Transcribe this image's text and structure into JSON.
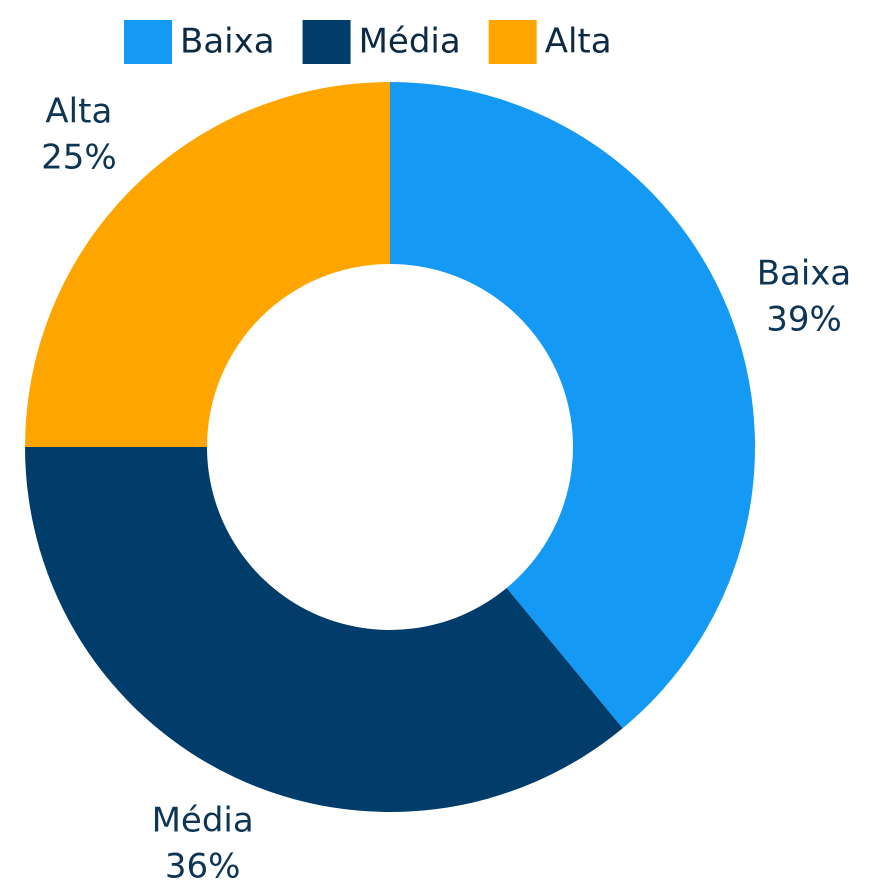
{
  "chart_data": {
    "type": "pie",
    "donut": true,
    "categories": [
      "Baixa",
      "Média",
      "Alta"
    ],
    "values": [
      39,
      36,
      25
    ],
    "value_labels": [
      "39%",
      "36%",
      "25%"
    ],
    "colors": [
      "#1499f5",
      "#003d6b",
      "#ffa500"
    ],
    "legend": "top"
  }
}
